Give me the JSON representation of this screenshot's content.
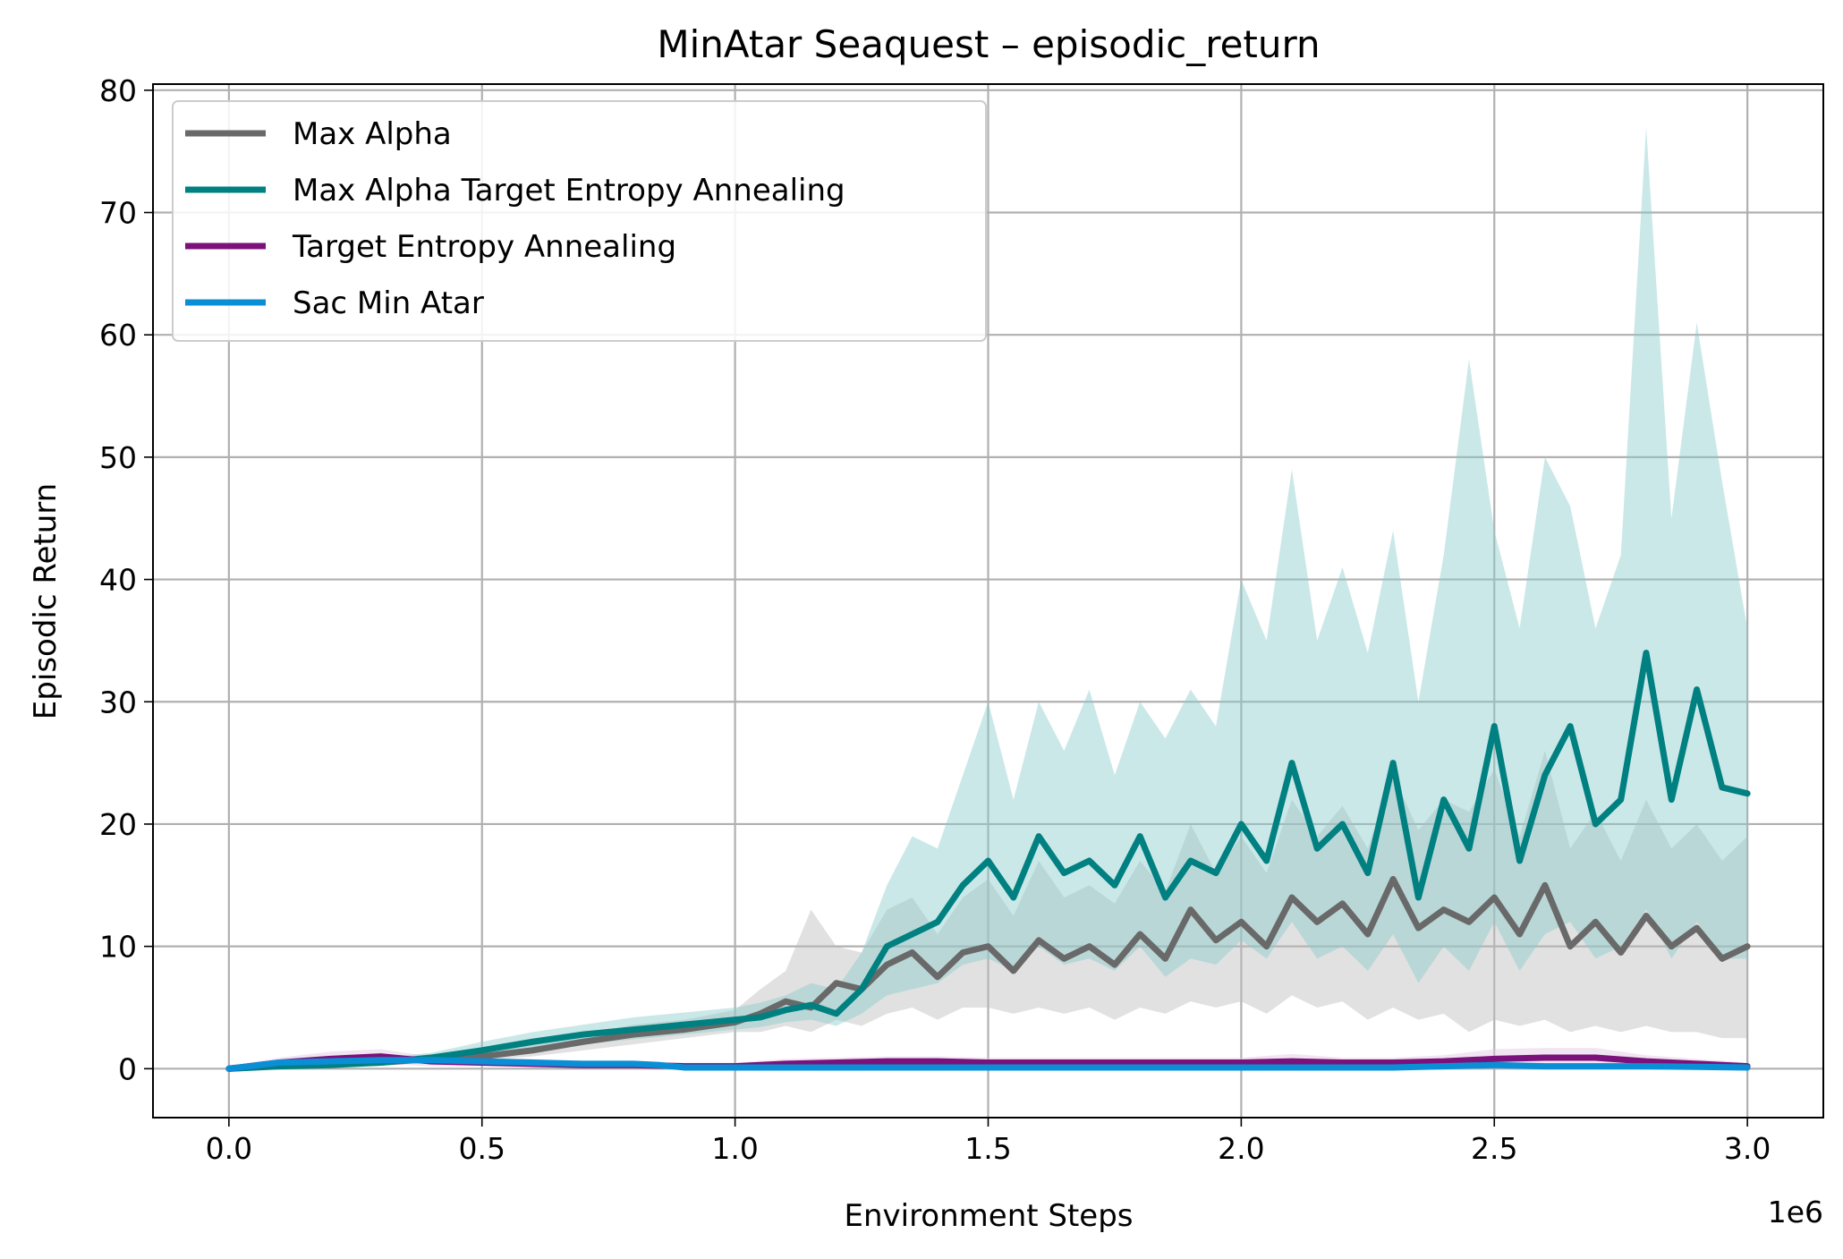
{
  "chart_data": {
    "type": "line",
    "title": "MinAtar Seaquest – episodic_return",
    "xlabel": "Environment Steps",
    "ylabel": "Episodic Return",
    "x_offset_label": "1e6",
    "xlim": [
      -0.15,
      3.15
    ],
    "ylim": [
      -4,
      80.5
    ],
    "xticks": [
      0.0,
      0.5,
      1.0,
      1.5,
      2.0,
      2.5,
      3.0
    ],
    "xtick_labels": [
      "0.0",
      "0.5",
      "1.0",
      "1.5",
      "2.0",
      "2.5",
      "3.0"
    ],
    "yticks": [
      0,
      10,
      20,
      30,
      40,
      50,
      60,
      70,
      80
    ],
    "ytick_labels": [
      "0",
      "10",
      "20",
      "30",
      "40",
      "50",
      "60",
      "70",
      "80"
    ],
    "grid": true,
    "legend_position": "upper-left",
    "series": [
      {
        "name": "Max Alpha",
        "color": "#696969",
        "band_color": "#bdbdbd",
        "x": [
          0,
          0.1,
          0.2,
          0.3,
          0.4,
          0.5,
          0.6,
          0.7,
          0.8,
          0.9,
          1.0,
          1.05,
          1.1,
          1.15,
          1.2,
          1.25,
          1.3,
          1.35,
          1.4,
          1.45,
          1.5,
          1.55,
          1.6,
          1.65,
          1.7,
          1.75,
          1.8,
          1.85,
          1.9,
          1.95,
          2.0,
          2.05,
          2.1,
          2.15,
          2.2,
          2.25,
          2.3,
          2.35,
          2.4,
          2.45,
          2.5,
          2.55,
          2.6,
          2.65,
          2.7,
          2.75,
          2.8,
          2.85,
          2.9,
          2.95,
          3.0
        ],
        "values": [
          0,
          0.3,
          0.4,
          0.5,
          0.8,
          1.0,
          1.5,
          2.2,
          2.8,
          3.2,
          3.8,
          4.5,
          5.5,
          5.0,
          7.0,
          6.5,
          8.5,
          9.5,
          7.5,
          9.5,
          10.0,
          8.0,
          10.5,
          9.0,
          10.0,
          8.5,
          11.0,
          9.0,
          13.0,
          10.5,
          12.0,
          10.0,
          14.0,
          12.0,
          13.5,
          11.0,
          15.5,
          11.5,
          13.0,
          12.0,
          14.0,
          11.0,
          15.0,
          10.0,
          12.0,
          9.5,
          12.5,
          10.0,
          11.5,
          9.0,
          10.0
        ],
        "lower": [
          0,
          0.1,
          0.2,
          0.3,
          0.5,
          0.7,
          1.0,
          1.5,
          2.0,
          2.5,
          3.0,
          3.0,
          3.5,
          3.0,
          4.0,
          3.5,
          4.5,
          5.0,
          4.0,
          5.0,
          5.0,
          4.5,
          5.0,
          4.5,
          5.0,
          4.0,
          5.0,
          4.5,
          5.5,
          5.0,
          5.5,
          4.5,
          6.0,
          5.0,
          5.5,
          4.0,
          5.0,
          4.0,
          4.5,
          3.0,
          4.0,
          3.5,
          4.0,
          3.0,
          3.5,
          3.0,
          3.5,
          3.0,
          3.0,
          2.5,
          2.5
        ],
        "upper": [
          0.3,
          0.6,
          0.7,
          0.8,
          1.2,
          1.4,
          2.0,
          2.8,
          3.6,
          4.0,
          4.8,
          6.5,
          8.0,
          13.0,
          10.0,
          9.5,
          13.0,
          14.0,
          11.0,
          14.0,
          15.5,
          12.5,
          17.0,
          14.0,
          15.0,
          13.5,
          17.0,
          14.5,
          20.0,
          16.0,
          19.0,
          16.0,
          22.0,
          19.0,
          21.5,
          18.0,
          24.0,
          19.5,
          22.0,
          21.0,
          24.5,
          19.0,
          26.0,
          18.0,
          21.0,
          17.0,
          22.0,
          18.0,
          20.0,
          17.0,
          19.0
        ]
      },
      {
        "name": "Max Alpha Target Entropy Annealing",
        "color": "#008080",
        "band_color": "#8ccccc",
        "x": [
          0,
          0.1,
          0.2,
          0.3,
          0.4,
          0.5,
          0.6,
          0.7,
          0.8,
          0.9,
          1.0,
          1.05,
          1.1,
          1.15,
          1.2,
          1.25,
          1.3,
          1.35,
          1.4,
          1.45,
          1.5,
          1.55,
          1.6,
          1.65,
          1.7,
          1.75,
          1.8,
          1.85,
          1.9,
          1.95,
          2.0,
          2.05,
          2.1,
          2.15,
          2.2,
          2.25,
          2.3,
          2.35,
          2.4,
          2.45,
          2.5,
          2.55,
          2.6,
          2.65,
          2.7,
          2.75,
          2.8,
          2.85,
          2.9,
          2.95,
          3.0
        ],
        "values": [
          0,
          0.2,
          0.3,
          0.5,
          0.9,
          1.5,
          2.2,
          2.8,
          3.2,
          3.6,
          4.0,
          4.2,
          4.8,
          5.2,
          4.5,
          6.5,
          10.0,
          11.0,
          12.0,
          15.0,
          17.0,
          14.0,
          19.0,
          16.0,
          17.0,
          15.0,
          19.0,
          14.0,
          17.0,
          16.0,
          20.0,
          17.0,
          25.0,
          18.0,
          20.0,
          16.0,
          25.0,
          14.0,
          22.0,
          18.0,
          28.0,
          17.0,
          24.0,
          28.0,
          20.0,
          22.0,
          34.0,
          22.0,
          31.0,
          23.0,
          22.5
        ],
        "lower": [
          0,
          0.1,
          0.2,
          0.3,
          0.6,
          1.0,
          1.6,
          2.0,
          2.4,
          2.8,
          3.2,
          3.4,
          3.8,
          4.0,
          3.5,
          4.5,
          6.0,
          6.5,
          7.0,
          8.5,
          9.0,
          8.0,
          10.0,
          8.5,
          9.0,
          8.0,
          10.0,
          7.5,
          9.0,
          8.5,
          10.5,
          9.0,
          12.0,
          9.0,
          10.0,
          8.0,
          11.0,
          7.0,
          10.0,
          8.0,
          12.0,
          8.0,
          11.0,
          12.0,
          9.0,
          10.0,
          13.0,
          9.0,
          12.0,
          9.0,
          9.0
        ],
        "upper": [
          0.3,
          0.5,
          0.6,
          0.9,
          1.3,
          2.2,
          3.0,
          3.6,
          4.2,
          4.6,
          5.0,
          5.4,
          6.0,
          7.0,
          6.5,
          9.5,
          15.0,
          19.0,
          18.0,
          24.0,
          30.0,
          22.0,
          30.0,
          26.0,
          31.0,
          24.0,
          30.0,
          27.0,
          31.0,
          28.0,
          40.0,
          35.0,
          49.0,
          35.0,
          41.0,
          34.0,
          44.0,
          30.0,
          42.0,
          58.0,
          44.0,
          36.0,
          50.0,
          46.0,
          36.0,
          42.0,
          77.0,
          45.0,
          61.0,
          48.0,
          36.0
        ]
      },
      {
        "name": "Target Entropy Annealing",
        "color": "#7b127b",
        "band_color": "#e3c6e3",
        "x": [
          0,
          0.1,
          0.2,
          0.3,
          0.4,
          0.5,
          0.6,
          0.7,
          0.8,
          0.9,
          1.0,
          1.1,
          1.2,
          1.3,
          1.4,
          1.5,
          1.6,
          1.7,
          1.8,
          1.9,
          2.0,
          2.1,
          2.2,
          2.3,
          2.4,
          2.5,
          2.6,
          2.7,
          2.8,
          2.9,
          3.0
        ],
        "values": [
          0,
          0.5,
          0.8,
          1.0,
          0.6,
          0.5,
          0.4,
          0.3,
          0.3,
          0.2,
          0.2,
          0.4,
          0.5,
          0.6,
          0.6,
          0.5,
          0.5,
          0.5,
          0.5,
          0.5,
          0.5,
          0.6,
          0.5,
          0.5,
          0.6,
          0.8,
          0.9,
          0.9,
          0.6,
          0.4,
          0.2
        ],
        "lower": [
          0,
          0.2,
          0.3,
          0.4,
          0.2,
          0.2,
          0.1,
          0.1,
          0.1,
          0.0,
          0.0,
          0.1,
          0.1,
          0.2,
          0.2,
          0.1,
          0.1,
          0.1,
          0.1,
          0.1,
          0.1,
          0.2,
          0.1,
          0.1,
          0.2,
          0.3,
          0.3,
          0.3,
          0.2,
          0.1,
          0.0
        ],
        "upper": [
          0.2,
          0.9,
          1.4,
          1.6,
          1.0,
          0.9,
          0.8,
          0.6,
          0.6,
          0.5,
          0.5,
          0.8,
          0.9,
          1.0,
          1.0,
          0.9,
          0.9,
          0.9,
          0.9,
          0.9,
          0.9,
          1.2,
          0.9,
          0.9,
          1.1,
          1.6,
          1.7,
          1.7,
          1.1,
          0.8,
          0.5
        ]
      },
      {
        "name": "Sac Min Atar",
        "color": "#0a8fd6",
        "band_color": "#9ed3f0",
        "x": [
          0,
          0.1,
          0.2,
          0.3,
          0.4,
          0.5,
          0.6,
          0.7,
          0.8,
          0.85,
          0.9,
          1.0,
          1.5,
          2.0,
          2.3,
          2.4,
          2.5,
          2.6,
          2.8,
          3.0
        ],
        "values": [
          0,
          0.5,
          0.6,
          0.7,
          0.7,
          0.6,
          0.5,
          0.4,
          0.4,
          0.3,
          0.1,
          0.1,
          0.1,
          0.1,
          0.1,
          0.2,
          0.3,
          0.2,
          0.2,
          0.1
        ],
        "lower": [
          0,
          0.3,
          0.4,
          0.5,
          0.5,
          0.4,
          0.3,
          0.2,
          0.2,
          0.1,
          0.0,
          0.0,
          0.0,
          0.0,
          0.0,
          0.1,
          0.1,
          0.1,
          0.1,
          0.0
        ],
        "upper": [
          0.1,
          0.7,
          0.8,
          0.9,
          0.9,
          0.8,
          0.7,
          0.6,
          0.6,
          0.5,
          0.2,
          0.2,
          0.2,
          0.2,
          0.2,
          0.4,
          0.5,
          0.4,
          0.4,
          0.2
        ]
      }
    ]
  }
}
